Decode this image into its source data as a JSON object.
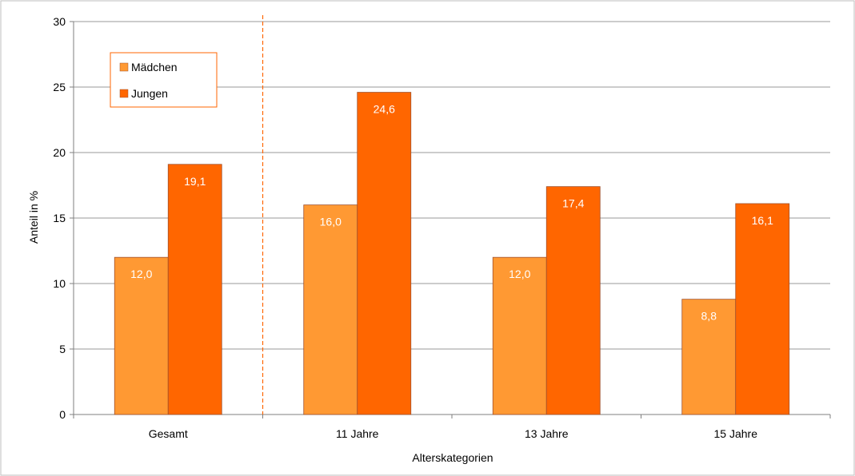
{
  "chart_data": {
    "type": "bar",
    "categories": [
      "Gesamt",
      "11 Jahre",
      "13 Jahre",
      "15 Jahre"
    ],
    "series": [
      {
        "name": "Mädchen",
        "values": [
          12.0,
          16.0,
          12.0,
          8.8
        ],
        "labels": [
          "12,0",
          "16,0",
          "12,0",
          "8,8"
        ],
        "color": "#FF9933"
      },
      {
        "name": "Jungen",
        "values": [
          19.1,
          24.6,
          17.4,
          16.1
        ],
        "labels": [
          "19,1",
          "24,6",
          "17,4",
          "16,1"
        ],
        "color": "#FF6600"
      }
    ],
    "xlabel": "Alterskategorien",
    "ylabel": "Anteil in %",
    "ylim": [
      0,
      30
    ],
    "yticks": [
      0,
      5,
      10,
      15,
      20,
      25,
      30
    ],
    "grid": true,
    "legend": "top-left",
    "separator_after_category": "Gesamt",
    "colors": {
      "grid": "#999999",
      "separator": "#FF6600",
      "legend_border": "#FF6600",
      "bar_border": "#A0522D"
    }
  }
}
